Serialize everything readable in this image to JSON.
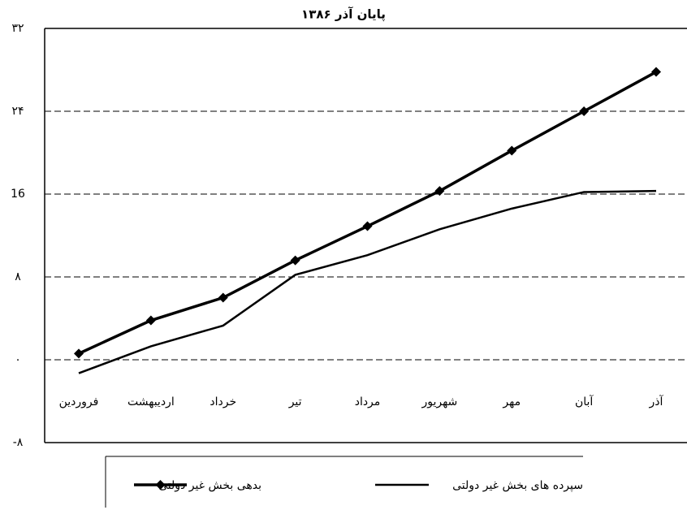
{
  "chart_data": {
    "type": "line",
    "title": "پایان آذر ۱۳۸۶",
    "categories": [
      "فروردین",
      "اردیبهشت",
      "خرداد",
      "تیر",
      "مرداد",
      "شهریور",
      "مهر",
      "آبان",
      "آذر"
    ],
    "series": [
      {
        "name": "بدهی بخش غیر دولتی",
        "color": "#000000",
        "marker": "diamond",
        "values": [
          0.6,
          3.8,
          6.0,
          9.6,
          12.9,
          16.3,
          20.2,
          24.0,
          27.8
        ]
      },
      {
        "name": "سپرده های بخش غیر دولتی",
        "color": "#000000",
        "values": [
          -1.3,
          1.3,
          3.3,
          8.2,
          10.1,
          12.6,
          14.6,
          16.2,
          16.3
        ]
      }
    ],
    "ylim": [
      -8,
      32
    ],
    "yticks": [
      {
        "value": -8,
        "label": "-۸"
      },
      {
        "value": 0,
        "label": "٠"
      },
      {
        "value": 8,
        "label": "۸"
      },
      {
        "value": 16,
        "label": "16"
      },
      {
        "value": 24,
        "label": "۲۴"
      },
      {
        "value": 32,
        "label": "۳۲"
      }
    ],
    "grid": true
  }
}
